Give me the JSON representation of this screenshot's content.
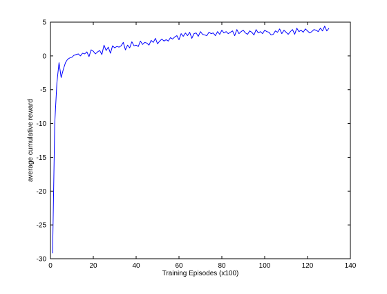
{
  "chart_data": {
    "type": "line",
    "title": "",
    "xlabel": "Training Episodes (x100)",
    "ylabel": "average cumulative reward",
    "xlim": [
      0,
      140
    ],
    "ylim": [
      -30,
      5
    ],
    "xticks": [
      0,
      20,
      40,
      60,
      80,
      100,
      120,
      140
    ],
    "yticks": [
      -30,
      -25,
      -20,
      -15,
      -10,
      -5,
      0,
      5
    ],
    "xtick_labels": [
      "0",
      "20",
      "40",
      "60",
      "80",
      "100",
      "120",
      "140"
    ],
    "ytick_labels": [
      "-30",
      "-25",
      "-20",
      "-15",
      "-10",
      "-5",
      "0",
      "5"
    ],
    "grid": false,
    "legend": "none",
    "line_color": "#0000ff",
    "series": [
      {
        "x": [
          1,
          2,
          3,
          4,
          5,
          6,
          7,
          8,
          9,
          10,
          11,
          12,
          13,
          14,
          15,
          16,
          17,
          18,
          19,
          20,
          21,
          22,
          23,
          24,
          25,
          26,
          27,
          28,
          29,
          30,
          31,
          32,
          33,
          34,
          35,
          36,
          37,
          38,
          39,
          40,
          41,
          42,
          43,
          44,
          45,
          46,
          47,
          48,
          49,
          50,
          51,
          52,
          53,
          54,
          55,
          56,
          57,
          58,
          59,
          60,
          61,
          62,
          63,
          64,
          65,
          66,
          67,
          68,
          69,
          70,
          71,
          72,
          73,
          74,
          75,
          76,
          77,
          78,
          79,
          80,
          81,
          82,
          83,
          84,
          85,
          86,
          87,
          88,
          89,
          90,
          91,
          92,
          93,
          94,
          95,
          96,
          97,
          98,
          99,
          100,
          101,
          102,
          103,
          104,
          105,
          106,
          107,
          108,
          109,
          110,
          111,
          112,
          113,
          114,
          115,
          116,
          117,
          118,
          119,
          120,
          121,
          122,
          123,
          124,
          125,
          126,
          127,
          128,
          129,
          130
        ],
        "y": [
          -29.2,
          -10.0,
          -4.0,
          -1.0,
          -3.2,
          -2.0,
          -1.0,
          -0.5,
          -0.3,
          -0.2,
          0.1,
          0.2,
          0.3,
          0.0,
          0.4,
          0.3,
          0.6,
          -0.1,
          0.9,
          0.7,
          0.3,
          0.6,
          0.8,
          0.2,
          1.6,
          0.8,
          1.3,
          0.4,
          1.5,
          1.2,
          1.4,
          1.3,
          1.5,
          2.0,
          0.9,
          1.6,
          1.2,
          2.1,
          1.5,
          1.6,
          1.4,
          2.2,
          1.7,
          2.0,
          1.9,
          1.6,
          2.3,
          2.0,
          2.6,
          1.8,
          2.2,
          2.5,
          2.2,
          2.4,
          2.2,
          2.7,
          2.5,
          2.8,
          3.0,
          2.4,
          3.3,
          2.9,
          3.4,
          3.0,
          3.5,
          2.6,
          3.3,
          3.4,
          2.9,
          3.6,
          3.2,
          3.1,
          3.0,
          3.5,
          3.3,
          3.4,
          3.0,
          3.6,
          3.2,
          3.8,
          3.4,
          3.6,
          3.3,
          3.5,
          3.7,
          3.0,
          3.9,
          3.3,
          3.6,
          3.8,
          3.4,
          3.2,
          3.7,
          3.5,
          3.1,
          3.9,
          3.4,
          3.6,
          3.3,
          3.8,
          3.6,
          3.5,
          3.1,
          3.2,
          3.7,
          3.5,
          4.0,
          3.3,
          3.8,
          3.5,
          3.2,
          3.6,
          3.9,
          3.2,
          4.1,
          3.6,
          3.8,
          3.5,
          4.0,
          3.7,
          3.4,
          3.6,
          3.9,
          3.8,
          3.6,
          4.1,
          3.7,
          4.4,
          3.7,
          4.1
        ]
      }
    ]
  }
}
